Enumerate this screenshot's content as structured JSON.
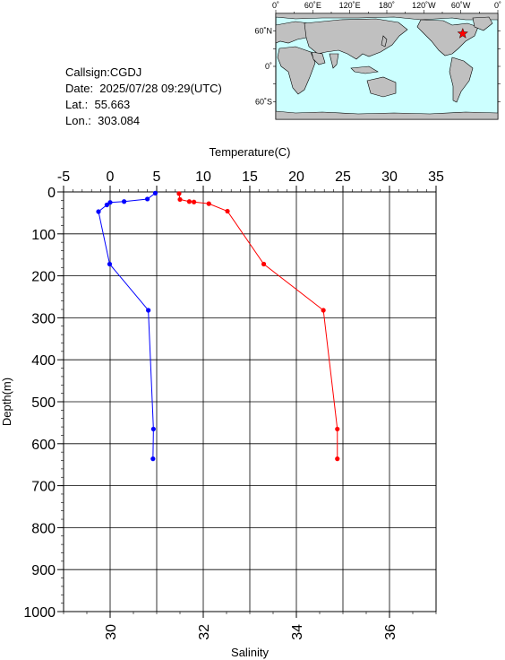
{
  "info": {
    "callsign": "Callsign:CGDJ",
    "date": "Date:  2025/07/28 09:29(UTC)",
    "lat": "Lat.:  55.663",
    "lon": "Lon.:  303.084"
  },
  "map": {
    "lon_labels": [
      "0˚",
      "60˚E",
      "120˚E",
      "180˚",
      "120˚W",
      "60˚W",
      "0˚"
    ],
    "lat_labels": [
      "60˚N",
      "0˚",
      "60˚S"
    ],
    "ocean_color": "#ccffff",
    "land_color": "#c0c0c0",
    "marker": {
      "lat": 55.663,
      "lon": 303.084,
      "color": "#ff0000",
      "icon": "star-icon"
    }
  },
  "chart_data": {
    "type": "line",
    "title": "",
    "ylabel": "Depth(m)",
    "ylim": [
      0,
      1000
    ],
    "y_ticks": [
      "0",
      "100",
      "200",
      "300",
      "400",
      "500",
      "600",
      "700",
      "800",
      "900",
      "1000"
    ],
    "grid": true,
    "top_axis": {
      "label": "Temperature(C)",
      "range": [
        -5,
        35
      ],
      "ticks": [
        "-5",
        "0",
        "5",
        "10",
        "15",
        "20",
        "25",
        "30",
        "35"
      ]
    },
    "bottom_axis": {
      "label": "Salinity",
      "range": [
        29,
        37
      ],
      "ticks": [
        "30",
        "32",
        "34",
        "36"
      ]
    },
    "series": [
      {
        "axis": "top",
        "color": "#ff0000",
        "points": [
          [
            7.4,
            4
          ],
          [
            7.5,
            18
          ],
          [
            8.5,
            23
          ],
          [
            9.0,
            24
          ],
          [
            10.6,
            28
          ],
          [
            12.6,
            46
          ],
          [
            16.5,
            172
          ],
          [
            22.9,
            282
          ],
          [
            24.4,
            565
          ],
          [
            24.4,
            636
          ]
        ]
      },
      {
        "axis": "bottom",
        "color": "#0000ff",
        "points": [
          [
            30.97,
            3
          ],
          [
            30.8,
            17
          ],
          [
            30.3,
            23
          ],
          [
            30.0,
            25
          ],
          [
            29.93,
            31
          ],
          [
            29.75,
            47
          ],
          [
            29.99,
            172
          ],
          [
            30.82,
            282
          ],
          [
            30.93,
            565
          ],
          [
            30.92,
            636
          ]
        ]
      }
    ]
  }
}
